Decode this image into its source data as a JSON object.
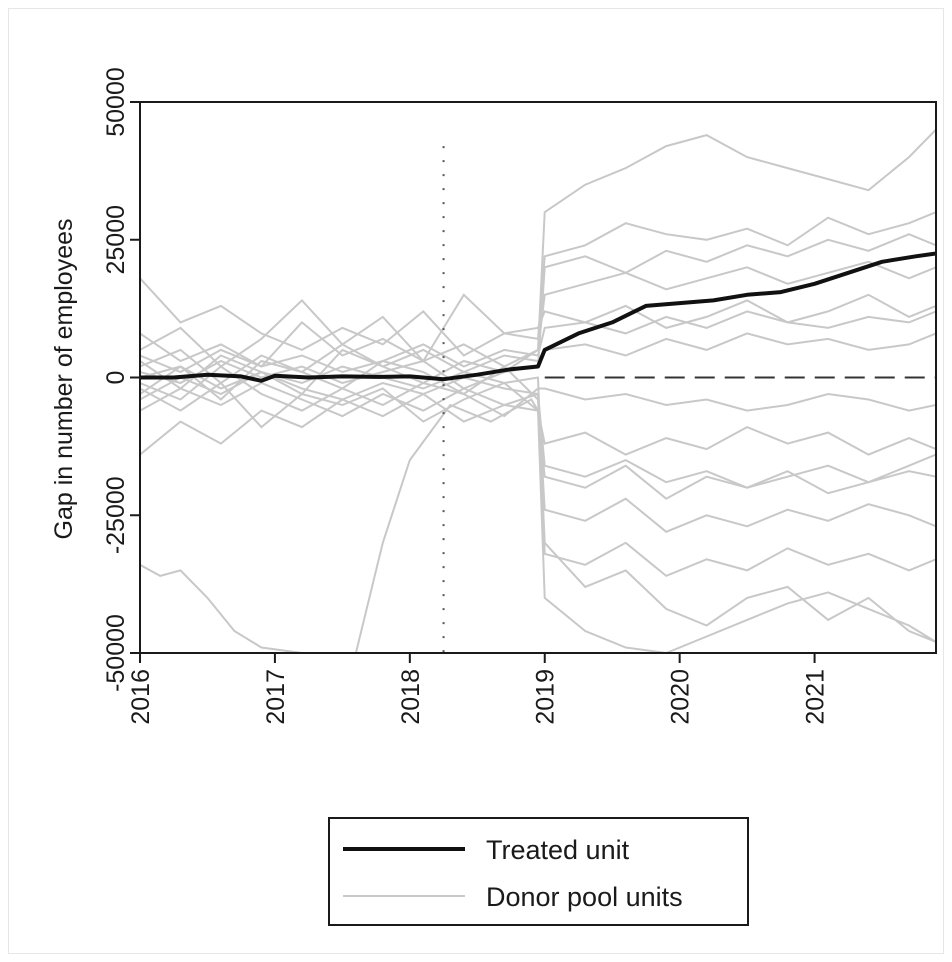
{
  "chart_data": {
    "type": "line",
    "title": "",
    "xlabel": "",
    "ylabel": "Gap in number of employees",
    "xlim": [
      2016,
      2021.9
    ],
    "ylim": [
      -50000,
      50000
    ],
    "x_ticks": [
      "2016",
      "2017",
      "2018",
      "2019",
      "2020",
      "2021"
    ],
    "y_ticks": [
      "50000",
      "25000",
      "0",
      "-25000",
      "-50000"
    ],
    "treatment_year": 2018.25,
    "grid": false,
    "legend_position": "bottom",
    "legend": [
      "Treated unit",
      "Donor pool units"
    ],
    "colors": {
      "treated": "#111111",
      "donor": "#c8c8c8",
      "axis": "#1a1a1a"
    },
    "series": [
      {
        "name": "Treated unit",
        "x": [
          2016.0,
          2016.25,
          2016.5,
          2016.75,
          2016.9,
          2017.0,
          2017.25,
          2017.5,
          2017.75,
          2018.0,
          2018.25,
          2018.5,
          2018.75,
          2018.95,
          2019.0,
          2019.25,
          2019.5,
          2019.75,
          2020.0,
          2020.25,
          2020.5,
          2020.75,
          2021.0,
          2021.25,
          2021.5,
          2021.75,
          2021.9
        ],
        "y": [
          0,
          0,
          500,
          200,
          -600,
          300,
          0,
          200,
          100,
          200,
          -300,
          500,
          1500,
          2000,
          5000,
          8000,
          10000,
          13000,
          13500,
          14000,
          15000,
          15500,
          17000,
          19000,
          21000,
          22000,
          22500
        ]
      },
      {
        "name": "Donor pool units",
        "lines": [
          {
            "x": [
              2016.0,
              2016.3,
              2016.6,
              2016.9,
              2017.2,
              2017.5,
              2017.8,
              2018.1,
              2018.4,
              2018.7,
              2018.95,
              2019.0,
              2019.3,
              2019.6,
              2019.9,
              2020.2,
              2020.5,
              2020.8,
              2021.1,
              2021.4,
              2021.7,
              2021.9
            ],
            "y": [
              3000,
              -2000,
              4000,
              1000,
              -3000,
              5000,
              2000,
              -1000,
              3000,
              1000,
              5000,
              30000,
              35000,
              38000,
              42000,
              44000,
              40000,
              38000,
              36000,
              34000,
              40000,
              45000
            ]
          },
          {
            "x": [
              2016.0,
              2016.3,
              2016.6,
              2016.9,
              2017.2,
              2017.5,
              2017.8,
              2018.1,
              2018.4,
              2018.7,
              2018.95,
              2019.0,
              2019.3,
              2019.6,
              2019.9,
              2020.2,
              2020.5,
              2020.8,
              2021.1,
              2021.4,
              2021.7,
              2021.9
            ],
            "y": [
              -3000,
              2000,
              -4000,
              3000,
              1000,
              -2000,
              3000,
              1000,
              -3000,
              2000,
              -4000,
              -30000,
              -38000,
              -35000,
              -42000,
              -45000,
              -40000,
              -38000,
              -44000,
              -40000,
              -46000,
              -48000
            ]
          },
          {
            "x": [
              2016.0,
              2016.3,
              2016.6,
              2016.9,
              2017.2,
              2017.5,
              2017.8,
              2018.1,
              2018.4,
              2018.7,
              2018.95,
              2019.0,
              2019.3,
              2019.6,
              2019.9,
              2020.2,
              2020.5,
              2020.8,
              2021.1,
              2021.4,
              2021.7,
              2021.9
            ],
            "y": [
              18000,
              10000,
              13000,
              8000,
              5000,
              9000,
              6000,
              12000,
              4000,
              8000,
              7000,
              22000,
              24000,
              28000,
              26000,
              25000,
              27000,
              24000,
              29000,
              26000,
              28000,
              30000
            ]
          },
          {
            "x": [
              2016.0,
              2016.3,
              2016.6,
              2016.9,
              2017.2,
              2017.5,
              2017.8,
              2018.1,
              2018.4,
              2018.7,
              2018.95,
              2019.0,
              2019.3,
              2019.6,
              2019.9,
              2020.2,
              2020.5,
              2020.8,
              2021.1,
              2021.4,
              2021.7,
              2021.9
            ],
            "y": [
              -14000,
              -8000,
              -12000,
              -6000,
              -9000,
              -4000,
              -7000,
              -3000,
              -8000,
              -5000,
              -6000,
              -18000,
              -20000,
              -16000,
              -22000,
              -18000,
              -20000,
              -17000,
              -21000,
              -19000,
              -16000,
              -14000
            ]
          },
          {
            "x": [
              2016.0,
              2016.3,
              2016.6,
              2016.9,
              2017.2,
              2017.5,
              2017.8,
              2018.1,
              2018.4,
              2018.7,
              2018.95,
              2019.0,
              2019.3,
              2019.6,
              2019.9,
              2020.2,
              2020.5,
              2020.8,
              2021.1,
              2021.4,
              2021.7,
              2021.9
            ],
            "y": [
              8000,
              3000,
              6000,
              2000,
              10000,
              4000,
              7000,
              3000,
              6000,
              2000,
              5000,
              15000,
              17000,
              19000,
              16000,
              18000,
              20000,
              17000,
              19000,
              21000,
              18000,
              20000
            ]
          },
          {
            "x": [
              2016.0,
              2016.3,
              2016.6,
              2016.9,
              2017.2,
              2017.5,
              2017.8,
              2018.1,
              2018.4,
              2018.7,
              2018.95,
              2019.0,
              2019.3,
              2019.6,
              2019.9,
              2020.2,
              2020.5,
              2020.8,
              2021.1,
              2021.4,
              2021.7,
              2021.9
            ],
            "y": [
              -6000,
              -2000,
              -5000,
              -1000,
              -4000,
              -7000,
              -3000,
              -6000,
              -2000,
              -5000,
              -3000,
              -24000,
              -26000,
              -22000,
              -28000,
              -25000,
              -27000,
              -24000,
              -26000,
              -23000,
              -25000,
              -27000
            ]
          },
          {
            "x": [
              2016.0,
              2016.3,
              2016.6,
              2016.9,
              2017.2,
              2017.5,
              2017.8,
              2018.1,
              2018.4,
              2018.7,
              2018.95,
              2019.0,
              2019.3,
              2019.6,
              2019.9,
              2020.2,
              2020.5,
              2020.8,
              2021.1,
              2021.4,
              2021.7,
              2021.9
            ],
            "y": [
              5000,
              9000,
              2000,
              7000,
              14000,
              6000,
              11000,
              3000,
              15000,
              8000,
              9000,
              12000,
              10000,
              13000,
              9000,
              11000,
              14000,
              10000,
              12000,
              15000,
              11000,
              13000
            ]
          },
          {
            "x": [
              2016.0,
              2016.3,
              2016.6,
              2016.9,
              2017.2,
              2017.5,
              2017.8,
              2018.1,
              2018.4,
              2018.7,
              2018.95,
              2019.0,
              2019.3,
              2019.6,
              2019.9,
              2020.2,
              2020.5,
              2020.8,
              2021.1,
              2021.4,
              2021.7,
              2021.9
            ],
            "y": [
              -2000,
              -6000,
              -1000,
              -9000,
              -3000,
              -5000,
              -2000,
              -8000,
              -4000,
              -1000,
              -6000,
              -12000,
              -10000,
              -14000,
              -11000,
              -13000,
              -9000,
              -12000,
              -10000,
              -14000,
              -11000,
              -13000
            ]
          },
          {
            "x": [
              2016.0,
              2016.3,
              2016.6,
              2016.9,
              2017.2,
              2017.5,
              2017.8,
              2018.1,
              2018.4,
              2018.7,
              2018.95,
              2019.0,
              2019.3,
              2019.6,
              2019.9,
              2020.2,
              2020.5,
              2020.8,
              2021.1,
              2021.4,
              2021.7,
              2021.9
            ],
            "y": [
              2000,
              5000,
              -1000,
              4000,
              1000,
              6000,
              2000,
              5000,
              1000,
              4000,
              3000,
              5000,
              6000,
              4000,
              7000,
              5000,
              8000,
              6000,
              7000,
              5000,
              6000,
              8000
            ]
          },
          {
            "x": [
              2016.0,
              2016.3,
              2016.6,
              2016.9,
              2017.2,
              2017.5,
              2017.8,
              2018.1,
              2018.4,
              2018.7,
              2018.95,
              2019.0,
              2019.3,
              2019.6,
              2019.9,
              2020.2,
              2020.5,
              2020.8,
              2021.1,
              2021.4,
              2021.7,
              2021.9
            ],
            "y": [
              -1000,
              -4000,
              2000,
              -3000,
              -6000,
              -2000,
              -5000,
              -1000,
              -3000,
              -7000,
              -2000,
              -2000,
              -4000,
              -3000,
              -5000,
              -4000,
              -6000,
              -5000,
              -3000,
              -4000,
              -6000,
              -5000
            ]
          },
          {
            "x": [
              2016.0,
              2016.15,
              2016.3,
              2016.5,
              2016.7,
              2016.9,
              2017.2,
              2017.5,
              2017.6,
              2017.8,
              2018.0,
              2018.3,
              2018.6,
              2018.9,
              2018.95,
              2019.0,
              2019.3,
              2019.6,
              2019.9,
              2020.2,
              2020.5,
              2020.8,
              2021.1,
              2021.4,
              2021.7,
              2021.9
            ],
            "y": [
              -34000,
              -36000,
              -35000,
              -40000,
              -46000,
              -49000,
              -50000,
              -50000,
              -50000,
              -30000,
              -15000,
              -5000,
              -8000,
              -4000,
              -6000,
              -40000,
              -46000,
              -49000,
              -50000,
              -47000,
              -44000,
              -41000,
              -39000,
              -42000,
              -45000,
              -48000
            ]
          },
          {
            "x": [
              2016.0,
              2016.3,
              2016.6,
              2016.9,
              2017.2,
              2017.5,
              2017.8,
              2018.1,
              2018.4,
              2018.7,
              2018.95,
              2019.0,
              2019.3,
              2019.6,
              2019.9,
              2020.2,
              2020.5,
              2020.8,
              2021.1,
              2021.4,
              2021.7,
              2021.9
            ],
            "y": [
              1000,
              -1000,
              3000,
              0,
              2000,
              -1000,
              1000,
              3000,
              -2000,
              1000,
              2000,
              20000,
              22000,
              19000,
              23000,
              21000,
              24000,
              22000,
              25000,
              23000,
              26000,
              24000
            ]
          },
          {
            "x": [
              2016.0,
              2016.3,
              2016.6,
              2016.9,
              2017.2,
              2017.5,
              2017.8,
              2018.1,
              2018.4,
              2018.7,
              2018.95,
              2019.0,
              2019.3,
              2019.6,
              2019.9,
              2020.2,
              2020.5,
              2020.8,
              2021.1,
              2021.4,
              2021.7,
              2021.9
            ],
            "y": [
              0,
              2000,
              -2000,
              1000,
              -1000,
              2000,
              0,
              -2000,
              1000,
              -1000,
              0,
              -32000,
              -34000,
              -30000,
              -36000,
              -33000,
              -35000,
              -31000,
              -34000,
              -32000,
              -35000,
              -33000
            ]
          },
          {
            "x": [
              2016.0,
              2016.3,
              2016.6,
              2016.9,
              2017.2,
              2017.5,
              2017.8,
              2018.1,
              2018.4,
              2018.7,
              2018.95,
              2019.0,
              2019.3,
              2019.6,
              2019.9,
              2020.2,
              2020.5,
              2020.8,
              2021.1,
              2021.4,
              2021.7,
              2021.9
            ],
            "y": [
              4000,
              1000,
              5000,
              2000,
              4000,
              1000,
              3000,
              6000,
              2000,
              5000,
              4000,
              9000,
              10000,
              8000,
              11000,
              9000,
              12000,
              10000,
              9000,
              11000,
              10000,
              12000
            ]
          },
          {
            "x": [
              2016.0,
              2016.3,
              2016.6,
              2016.9,
              2017.2,
              2017.5,
              2017.8,
              2018.1,
              2018.4,
              2018.7,
              2018.95,
              2019.0,
              2019.3,
              2019.6,
              2019.9,
              2020.2,
              2020.5,
              2020.8,
              2021.1,
              2021.4,
              2021.7,
              2021.9
            ],
            "y": [
              -4000,
              0,
              -3000,
              1000,
              -2000,
              -4000,
              -1000,
              -3000,
              0,
              -2000,
              -3000,
              -16000,
              -18000,
              -15000,
              -19000,
              -17000,
              -20000,
              -18000,
              -16000,
              -19000,
              -17000,
              -18000
            ]
          }
        ]
      }
    ]
  }
}
